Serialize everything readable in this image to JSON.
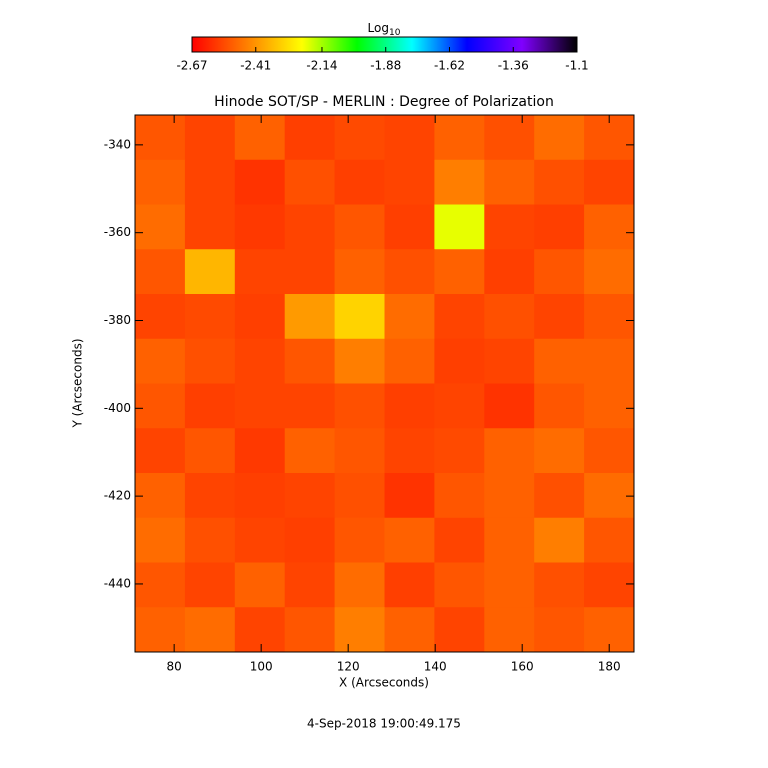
{
  "chart_data": {
    "type": "heatmap",
    "title": "Hinode SOT/SP - MERLIN : Degree of Polarization",
    "x_label": "X (Arcseconds)",
    "y_label": "Y (Arcseconds)",
    "timestamp": "4-Sep-2018 19:00:49.175",
    "colorbar_label": "Log",
    "colorbar_label_sub": "10",
    "xlim": [
      71,
      185.7
    ],
    "ylim": [
      -455.5,
      -333.2
    ],
    "xticks": [
      80,
      100,
      120,
      140,
      160,
      180
    ],
    "yticks": [
      -340,
      -360,
      -380,
      -400,
      -420,
      -440
    ],
    "zlim": [
      -2.67,
      -1.1
    ],
    "zticks": [
      -2.67,
      -2.41,
      -2.14,
      -1.88,
      -1.62,
      -1.36,
      -1.1
    ],
    "colormap": [
      "#ff0000",
      "#ff8000",
      "#ffff00",
      "#00ff00",
      "#00ffff",
      "#0000ff",
      "#8000ff",
      "#000000"
    ],
    "z": [
      [
        -2.52,
        -2.55,
        -2.5,
        -2.56,
        -2.54,
        -2.55,
        -2.5,
        -2.53,
        -2.48,
        -2.52
      ],
      [
        -2.5,
        -2.55,
        -2.58,
        -2.53,
        -2.56,
        -2.55,
        -2.45,
        -2.5,
        -2.53,
        -2.55
      ],
      [
        -2.48,
        -2.55,
        -2.57,
        -2.55,
        -2.52,
        -2.56,
        -2.2,
        -2.55,
        -2.56,
        -2.5
      ],
      [
        -2.52,
        -2.35,
        -2.55,
        -2.55,
        -2.5,
        -2.53,
        -2.5,
        -2.56,
        -2.52,
        -2.48
      ],
      [
        -2.55,
        -2.54,
        -2.56,
        -2.4,
        -2.3,
        -2.48,
        -2.55,
        -2.53,
        -2.55,
        -2.52
      ],
      [
        -2.5,
        -2.53,
        -2.55,
        -2.52,
        -2.45,
        -2.5,
        -2.56,
        -2.55,
        -2.5,
        -2.5
      ],
      [
        -2.52,
        -2.56,
        -2.55,
        -2.55,
        -2.53,
        -2.56,
        -2.55,
        -2.58,
        -2.52,
        -2.5
      ],
      [
        -2.55,
        -2.52,
        -2.57,
        -2.5,
        -2.52,
        -2.55,
        -2.54,
        -2.5,
        -2.48,
        -2.52
      ],
      [
        -2.5,
        -2.55,
        -2.56,
        -2.55,
        -2.53,
        -2.58,
        -2.52,
        -2.5,
        -2.53,
        -2.48
      ],
      [
        -2.48,
        -2.53,
        -2.55,
        -2.56,
        -2.52,
        -2.5,
        -2.55,
        -2.5,
        -2.45,
        -2.52
      ],
      [
        -2.52,
        -2.55,
        -2.5,
        -2.55,
        -2.48,
        -2.56,
        -2.52,
        -2.5,
        -2.53,
        -2.55
      ],
      [
        -2.5,
        -2.48,
        -2.55,
        -2.52,
        -2.45,
        -2.5,
        -2.55,
        -2.5,
        -2.52,
        -2.5
      ]
    ]
  }
}
